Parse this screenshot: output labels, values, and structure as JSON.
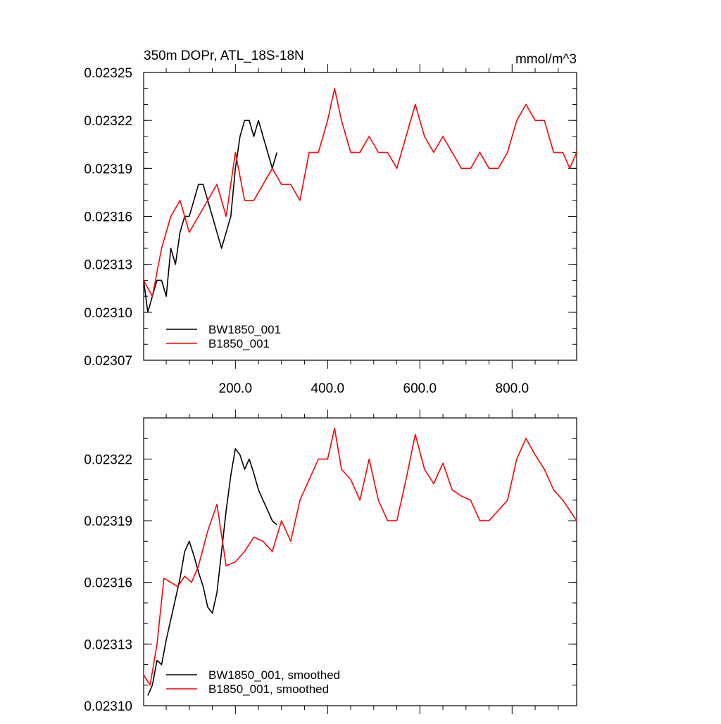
{
  "chart_data": [
    {
      "type": "line",
      "title": "350m DOPr, ATL_18S-18N",
      "units": "mmol/m^3",
      "xlabel": "",
      "ylabel": "",
      "xlim": [
        1,
        940
      ],
      "ylim": [
        0.02307,
        0.02325
      ],
      "x_ticks": [
        200,
        400,
        600,
        800
      ],
      "x_tick_labels": [
        "200.0",
        "400.0",
        "600.0",
        "800.0"
      ],
      "y_ticks": [
        0.02307,
        0.0231,
        0.02313,
        0.02316,
        0.02319,
        0.02322,
        0.02325
      ],
      "y_tick_labels": [
        "0.02307",
        "0.02310",
        "0.02313",
        "0.02316",
        "0.02319",
        "0.02322",
        "0.02325"
      ],
      "grid": false,
      "legend_position": "bottom-left",
      "series": [
        {
          "name": "BW1850_001",
          "color": "#000000",
          "x": [
            1,
            10,
            20,
            30,
            40,
            50,
            60,
            70,
            80,
            90,
            100,
            110,
            120,
            130,
            140,
            150,
            160,
            170,
            180,
            190,
            200,
            210,
            220,
            230,
            240,
            250,
            260,
            270,
            280,
            290
          ],
          "values": [
            0.02312,
            0.0231,
            0.02311,
            0.02312,
            0.02312,
            0.02311,
            0.02314,
            0.02313,
            0.02315,
            0.02316,
            0.02316,
            0.02317,
            0.02318,
            0.02318,
            0.02317,
            0.02316,
            0.02315,
            0.02314,
            0.02315,
            0.02316,
            0.02319,
            0.02321,
            0.02322,
            0.02322,
            0.02321,
            0.02322,
            0.02321,
            0.0232,
            0.02319,
            0.0232
          ]
        },
        {
          "name": "B1850_001",
          "color": "#ff0000",
          "x": [
            1,
            20,
            40,
            60,
            80,
            100,
            120,
            140,
            160,
            180,
            200,
            220,
            240,
            260,
            280,
            300,
            320,
            340,
            360,
            380,
            400,
            415,
            430,
            450,
            470,
            490,
            510,
            530,
            550,
            570,
            590,
            610,
            630,
            650,
            670,
            690,
            710,
            730,
            750,
            770,
            790,
            810,
            830,
            850,
            870,
            890,
            910,
            925,
            940
          ],
          "values": [
            0.02312,
            0.02311,
            0.02314,
            0.02316,
            0.02317,
            0.02315,
            0.02316,
            0.02317,
            0.02318,
            0.02316,
            0.0232,
            0.02317,
            0.02317,
            0.02318,
            0.02319,
            0.02318,
            0.02318,
            0.02317,
            0.0232,
            0.0232,
            0.02322,
            0.02324,
            0.02322,
            0.0232,
            0.0232,
            0.02321,
            0.0232,
            0.0232,
            0.02319,
            0.02321,
            0.02323,
            0.02321,
            0.0232,
            0.02321,
            0.0232,
            0.02319,
            0.02319,
            0.0232,
            0.02319,
            0.02319,
            0.0232,
            0.02322,
            0.02323,
            0.02322,
            0.02322,
            0.0232,
            0.0232,
            0.02319,
            0.0232
          ]
        }
      ]
    },
    {
      "type": "line",
      "title": "",
      "xlabel": "",
      "ylabel": "",
      "xlim": [
        1,
        940
      ],
      "ylim": [
        0.0231,
        0.02324
      ],
      "x_ticks": [
        200,
        400,
        600,
        800
      ],
      "x_tick_labels": [
        "",
        "",
        "",
        ""
      ],
      "y_ticks": [
        0.0231,
        0.02313,
        0.02316,
        0.02319,
        0.02322
      ],
      "y_tick_labels": [
        "0.02310",
        "0.02313",
        "0.02316",
        "0.02319",
        "0.02322"
      ],
      "grid": false,
      "legend_position": "bottom-left",
      "series": [
        {
          "name": "BW1850_001, smoothed",
          "color": "#000000",
          "x": [
            10,
            20,
            30,
            40,
            50,
            60,
            70,
            80,
            90,
            100,
            110,
            120,
            130,
            140,
            150,
            160,
            170,
            180,
            190,
            200,
            210,
            220,
            230,
            240,
            250,
            260,
            270,
            280,
            290
          ],
          "values": [
            0.023105,
            0.02311,
            0.023122,
            0.02312,
            0.023132,
            0.023142,
            0.023152,
            0.023162,
            0.023175,
            0.02318,
            0.023173,
            0.023165,
            0.023158,
            0.023148,
            0.023145,
            0.023155,
            0.023175,
            0.023195,
            0.023212,
            0.023225,
            0.023222,
            0.023215,
            0.02322,
            0.023213,
            0.023205,
            0.0232,
            0.023195,
            0.02319,
            0.023188
          ]
        },
        {
          "name": "B1850_001, smoothed",
          "color": "#ff0000",
          "x": [
            1,
            15,
            30,
            45,
            60,
            75,
            90,
            105,
            120,
            140,
            160,
            180,
            200,
            220,
            240,
            260,
            280,
            300,
            320,
            340,
            360,
            380,
            400,
            415,
            430,
            450,
            470,
            490,
            510,
            530,
            550,
            570,
            590,
            610,
            630,
            650,
            670,
            690,
            710,
            730,
            750,
            770,
            790,
            810,
            830,
            850,
            870,
            890,
            910,
            925,
            940
          ],
          "values": [
            0.023115,
            0.02311,
            0.02313,
            0.023162,
            0.02316,
            0.023158,
            0.023163,
            0.02316,
            0.023168,
            0.023185,
            0.023198,
            0.023168,
            0.02317,
            0.023175,
            0.023182,
            0.02318,
            0.023175,
            0.02319,
            0.02318,
            0.0232,
            0.02321,
            0.02322,
            0.02322,
            0.023235,
            0.023215,
            0.02321,
            0.0232,
            0.02322,
            0.0232,
            0.02319,
            0.02319,
            0.02321,
            0.023232,
            0.023215,
            0.023208,
            0.023218,
            0.023205,
            0.023202,
            0.0232,
            0.02319,
            0.02319,
            0.023195,
            0.0232,
            0.02322,
            0.02323,
            0.023222,
            0.023215,
            0.023205,
            0.0232,
            0.023195,
            0.02319
          ]
        }
      ]
    }
  ]
}
